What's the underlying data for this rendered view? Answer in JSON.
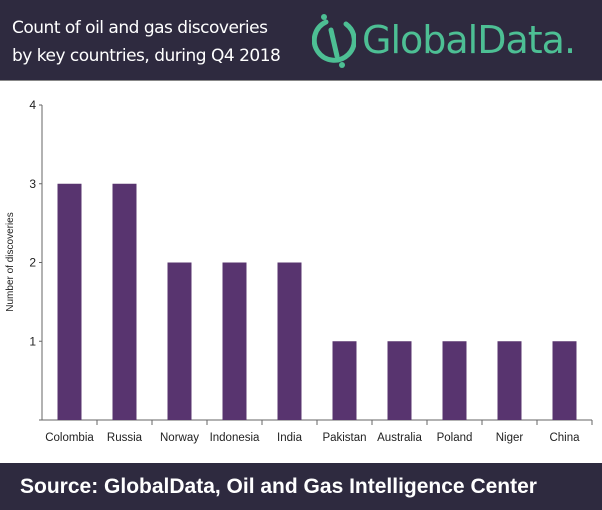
{
  "header": {
    "title_line1": "Count of oil and gas discoveries",
    "title_line2": "by key countries, during Q4 2018",
    "logo": "GlobalData."
  },
  "footer": {
    "source": "Source:  GlobalData, Oil and Gas Intelligence Center"
  },
  "colors": {
    "bar": "#58346f",
    "header_bg": "#2e2a3f",
    "logo": "#4dbf94"
  },
  "chart_data": {
    "type": "bar",
    "title": "Count of oil and gas discoveries by key countries, during Q4 2018",
    "xlabel": "",
    "ylabel": "Number of discoveries",
    "categories": [
      "Colombia",
      "Russia",
      "Norway",
      "Indonesia",
      "India",
      "Pakistan",
      "Australia",
      "Poland",
      "Niger",
      "China"
    ],
    "values": [
      3,
      3,
      2,
      2,
      2,
      1,
      1,
      1,
      1,
      1
    ],
    "ylim": [
      0,
      4
    ],
    "yticks": [
      1,
      2,
      3,
      4
    ],
    "grid": false
  }
}
